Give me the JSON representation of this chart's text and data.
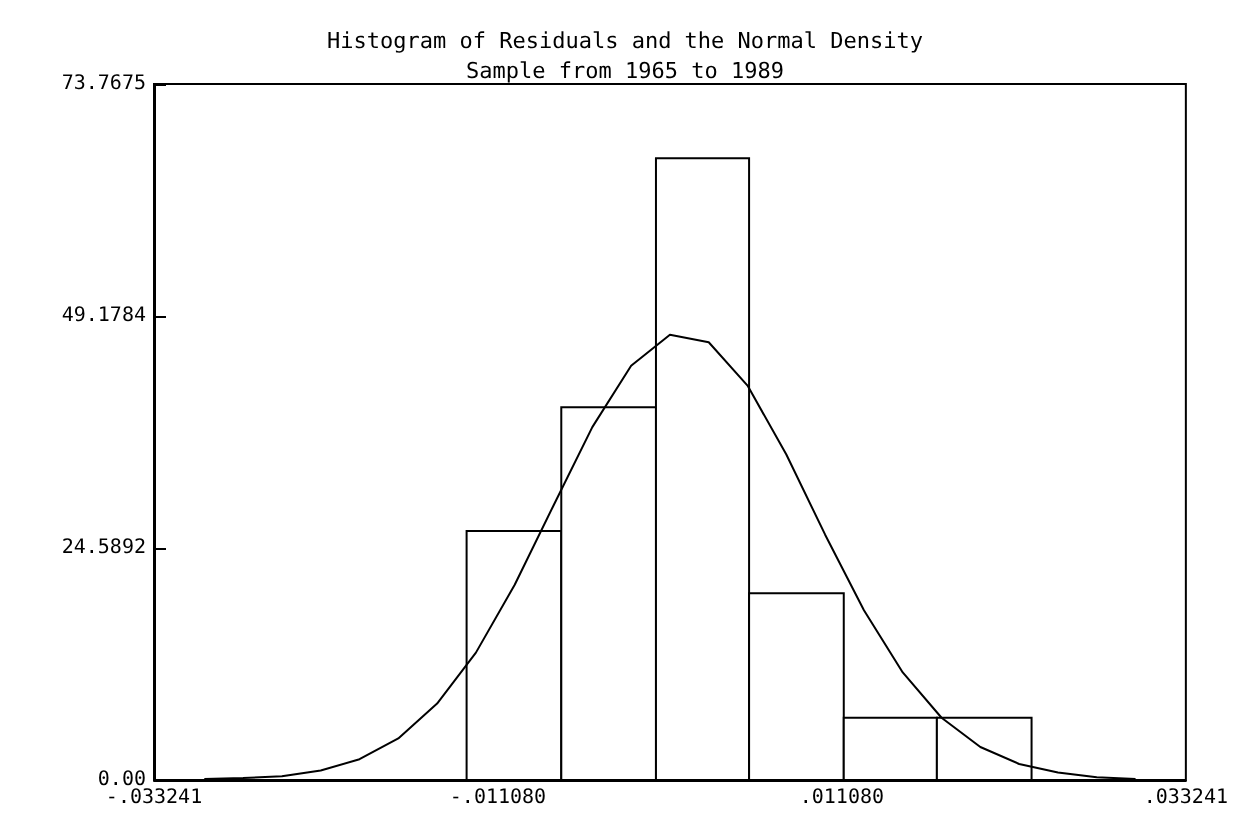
{
  "chart_data": {
    "type": "histogram",
    "title": "Histogram of Residuals and the Normal Density",
    "subtitle": "Sample from 1965 to 1989",
    "bins": [
      -0.0131,
      -0.007,
      -0.0009,
      0.0051,
      0.0112,
      0.0172,
      0.0233
    ],
    "values": [
      26.4,
      39.5,
      65.9,
      19.8,
      6.6,
      6.6
    ],
    "color": "#ffffff",
    "series": [
      {
        "type": "line",
        "color": "#000000",
        "x": [
          -0.03,
          -0.0275,
          -0.025,
          -0.0225,
          -0.02,
          -0.0175,
          -0.015,
          -0.0125,
          -0.01,
          -0.0075,
          -0.005,
          -0.0025,
          0,
          0.0025,
          0.005,
          0.0075,
          0.01,
          0.0125,
          0.015,
          0.0175,
          0.02,
          0.0225,
          0.025,
          0.0275,
          0.03
        ],
        "values": [
          0.1,
          0.2,
          0.4,
          1.0,
          2.2,
          4.4,
          8.1,
          13.5,
          20.7,
          29.1,
          37.4,
          43.9,
          47.2,
          46.4,
          41.8,
          34.5,
          26.0,
          18.0,
          11.4,
          6.6,
          3.5,
          1.7,
          0.8,
          0.3,
          0.1
        ]
      }
    ],
    "xlim": [
      -0.033241,
      0.033241
    ],
    "xticks": [
      {
        "value": -0.033241,
        "label": "-.033241"
      },
      {
        "value": -0.01108,
        "label": "-.011080"
      },
      {
        "value": 0.01108,
        "label": ".011080"
      },
      {
        "value": 0.033241,
        "label": ".033241"
      }
    ],
    "ylim": [
      0,
      73.7675
    ],
    "yticks": [
      {
        "value": 0,
        "label": "0.00"
      },
      24.5892,
      49.1784,
      73.7675
    ],
    "grid": false,
    "marker": "none",
    "line_style": "solid"
  }
}
